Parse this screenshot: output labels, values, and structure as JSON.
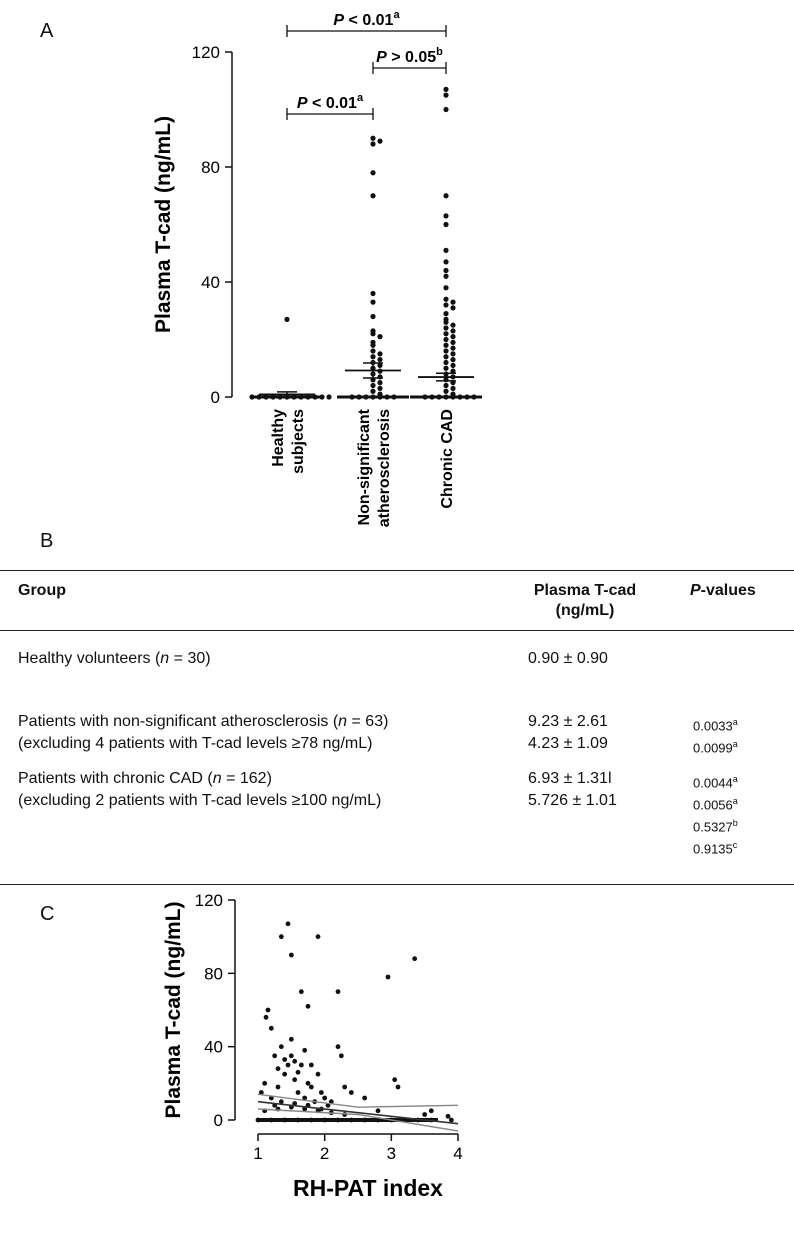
{
  "panels": {
    "a": "A",
    "b": "B",
    "c": "C"
  },
  "chart_data": [
    {
      "type": "scatter",
      "title": "",
      "ylabel": "Plasma T-cad (ng/mL)",
      "ylim": [
        0,
        120
      ],
      "yticks": [
        "0",
        "40",
        "80",
        "120"
      ],
      "categories": [
        "Healthy subjects",
        "Non-significant atherosclerosis",
        "Chronic CAD"
      ],
      "category_lines": [
        [
          "Healthy",
          "subjects"
        ],
        [
          "Non-significant",
          "atherosclerosis"
        ],
        [
          "Chronic CAD"
        ]
      ],
      "means": [
        0.9,
        9.23,
        6.93
      ],
      "sem": [
        0.9,
        2.61,
        1.31
      ],
      "series": [
        {
          "values": [
            27,
            0,
            0,
            0,
            0,
            0,
            0,
            0,
            0,
            0,
            0,
            0,
            0
          ]
        },
        {
          "values": [
            90,
            89,
            88,
            78,
            70,
            36,
            33,
            28,
            23,
            22,
            21,
            19,
            18,
            16,
            15,
            14,
            13,
            12,
            11,
            10,
            9,
            8,
            7,
            6,
            5,
            4,
            3,
            2,
            1,
            0,
            0,
            0,
            0,
            0,
            0,
            0
          ]
        },
        {
          "values": [
            107,
            105,
            100,
            70,
            63,
            60,
            51,
            47,
            44,
            42,
            38,
            34,
            33,
            32,
            31,
            29,
            27,
            26,
            25,
            24,
            23,
            22,
            21,
            20,
            19,
            18,
            17,
            16,
            15,
            14,
            13,
            12,
            11,
            10,
            9,
            8,
            7,
            6,
            5,
            4,
            3,
            2,
            1,
            0,
            0,
            0,
            0,
            0,
            0,
            0,
            0
          ]
        }
      ],
      "brackets": [
        {
          "from": 0,
          "to": 2,
          "label": "P < 0.01",
          "sup": "a"
        },
        {
          "from": 1,
          "to": 2,
          "label": "P > 0.05",
          "sup": "b"
        },
        {
          "from": 0,
          "to": 1,
          "label": "P < 0.01",
          "sup": "a"
        }
      ]
    },
    {
      "type": "scatter",
      "title": "",
      "xlabel": "RH-PAT index",
      "ylabel": "Plasma T-cad (ng/mL)",
      "xlim": [
        1,
        4
      ],
      "ylim": [
        0,
        120
      ],
      "xticks": [
        "1",
        "2",
        "3",
        "4"
      ],
      "yticks": [
        "0",
        "40",
        "80",
        "120"
      ],
      "points": [
        [
          1.05,
          15
        ],
        [
          1.1,
          20
        ],
        [
          1.15,
          60
        ],
        [
          1.12,
          56
        ],
        [
          1.2,
          50
        ],
        [
          1.2,
          12
        ],
        [
          1.25,
          35
        ],
        [
          1.25,
          8
        ],
        [
          1.3,
          28
        ],
        [
          1.3,
          18
        ],
        [
          1.35,
          40
        ],
        [
          1.35,
          100
        ],
        [
          1.4,
          25
        ],
        [
          1.4,
          33
        ],
        [
          1.45,
          30
        ],
        [
          1.45,
          107
        ],
        [
          1.5,
          90
        ],
        [
          1.5,
          44
        ],
        [
          1.5,
          35
        ],
        [
          1.55,
          22
        ],
        [
          1.55,
          32
        ],
        [
          1.6,
          26
        ],
        [
          1.6,
          15
        ],
        [
          1.65,
          30
        ],
        [
          1.65,
          70
        ],
        [
          1.7,
          12
        ],
        [
          1.7,
          38
        ],
        [
          1.75,
          62
        ],
        [
          1.75,
          20
        ],
        [
          1.8,
          30
        ],
        [
          1.8,
          18
        ],
        [
          1.85,
          10
        ],
        [
          1.9,
          100
        ],
        [
          1.9,
          25
        ],
        [
          1.95,
          15
        ],
        [
          2.0,
          12
        ],
        [
          2.05,
          8
        ],
        [
          2.1,
          10
        ],
        [
          2.2,
          70
        ],
        [
          2.2,
          40
        ],
        [
          2.25,
          35
        ],
        [
          2.3,
          18
        ],
        [
          2.4,
          15
        ],
        [
          2.6,
          12
        ],
        [
          2.8,
          5
        ],
        [
          2.95,
          78
        ],
        [
          3.05,
          22
        ],
        [
          3.1,
          18
        ],
        [
          3.35,
          88
        ],
        [
          3.5,
          3
        ],
        [
          3.6,
          5
        ],
        [
          3.85,
          2
        ],
        [
          1.0,
          0
        ],
        [
          1.2,
          0
        ],
        [
          1.4,
          0
        ],
        [
          1.6,
          0
        ],
        [
          1.8,
          0
        ],
        [
          2.0,
          0
        ],
        [
          2.2,
          0
        ],
        [
          2.4,
          0
        ],
        [
          2.6,
          0
        ],
        [
          2.8,
          0
        ],
        [
          3.0,
          0
        ],
        [
          3.2,
          0
        ],
        [
          3.4,
          0
        ],
        [
          3.6,
          0
        ],
        [
          3.9,
          0
        ],
        [
          1.1,
          5
        ],
        [
          1.3,
          6
        ],
        [
          1.5,
          7
        ],
        [
          1.7,
          6
        ],
        [
          1.9,
          5
        ],
        [
          2.1,
          4
        ],
        [
          2.3,
          3
        ],
        [
          1.35,
          10
        ],
        [
          1.55,
          9
        ],
        [
          1.75,
          8
        ],
        [
          1.95,
          6
        ]
      ],
      "regression": {
        "x": [
          1,
          4
        ],
        "y": [
          10,
          -2
        ]
      },
      "ci_upper": {
        "x": [
          1,
          2.5,
          4
        ],
        "y": [
          14,
          7,
          8
        ]
      },
      "ci_lower": {
        "x": [
          1,
          2.5,
          4
        ],
        "y": [
          6,
          3,
          -6
        ]
      }
    }
  ],
  "table": {
    "headers": {
      "group": "Group",
      "tcad_line1": "Plasma T-cad",
      "tcad_line2": "(ng/mL)",
      "p_italic": "P",
      "p_rest": "-values"
    },
    "rows": [
      {
        "pre": "Healthy volunteers (",
        "n_sym": "n",
        "n_val": " = 30)",
        "value": "0.90 ± 0.90",
        "p": []
      },
      {
        "pre": "Patients with non-significant atherosclerosis (",
        "n_sym": "n",
        "n_val": " = 63)",
        "value": "9.23 ± 2.61",
        "p": [
          {
            "v": "0.0033",
            "s": "a"
          }
        ]
      },
      {
        "text": "(excluding 4 patients with T-cad levels ≥78 ng/mL)",
        "value": "4.23 ± 1.09",
        "p": [
          {
            "v": "0.0099",
            "s": "a"
          }
        ]
      },
      {
        "pre": "Patients with chronic CAD (",
        "n_sym": "n",
        "n_val": " = 162)",
        "value": "6.93 ± 1.31l",
        "p": [
          {
            "v": "0.0044",
            "s": "a"
          }
        ]
      },
      {
        "text": "(excluding 2 patients with T-cad levels ≥100 ng/mL)",
        "value": "5.726 ± 1.01",
        "p": [
          {
            "v": "0.0056",
            "s": "a"
          },
          {
            "v": "0.5327",
            "s": "b"
          },
          {
            "v": "0.9135",
            "s": "c"
          }
        ]
      }
    ]
  }
}
